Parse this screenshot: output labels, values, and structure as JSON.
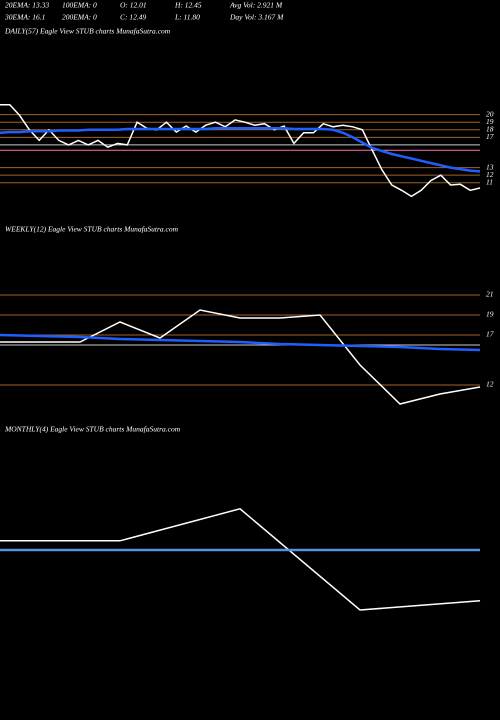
{
  "header": {
    "stats": [
      "20EMA: 13.33",
      "100EMA: 0",
      "O: 12.01",
      "H: 12.45",
      "Avg Vol: 2.921 M",
      "30EMA: 16.1",
      "200EMA: 0",
      "C: 12.49",
      "L: 11.80",
      "Day Vol: 3.167 M"
    ]
  },
  "chart_data": [
    {
      "type": "line",
      "title": "DAILY(57) Eagle  View  STUB charts MunafaSutra.com",
      "categories": [
        null,
        null,
        null,
        null,
        null,
        null,
        null,
        null,
        null,
        null,
        null,
        null,
        null,
        null,
        null,
        null,
        null,
        null,
        null,
        null,
        null,
        null,
        null,
        null,
        null,
        null,
        null,
        null,
        null,
        null,
        null,
        null,
        null,
        null,
        null,
        null,
        null,
        null,
        null,
        null,
        null,
        null,
        null,
        null,
        null,
        null,
        null,
        null,
        null,
        null
      ],
      "series": [
        {
          "color": "#ffffff",
          "values": [
            21.3,
            21.3,
            19.9,
            18.0,
            16.6,
            18.0,
            16.6,
            16.0,
            16.6,
            16.0,
            16.6,
            15.7,
            16.2,
            16.0,
            19.0,
            18.2,
            18.0,
            19.0,
            17.7,
            18.5,
            17.7,
            18.6,
            19.0,
            18.4,
            19.3,
            19.0,
            18.6,
            18.8,
            18.0,
            18.5,
            16.2,
            17.6,
            17.6,
            18.8,
            18.4,
            18.6,
            18.4,
            18.0,
            15.3,
            12.7,
            10.7,
            10.0,
            9.2,
            10.0,
            11.3,
            12.0,
            10.7,
            10.8,
            10.0,
            10.3
          ]
        },
        {
          "color": "#1f5fff",
          "values": [
            17.6,
            17.7,
            17.7,
            17.8,
            17.8,
            17.8,
            17.9,
            17.9,
            17.9,
            18.0,
            18.0,
            18.0,
            18.0,
            18.1,
            18.1,
            18.1,
            18.1,
            18.1,
            18.1,
            18.1,
            18.1,
            18.1,
            18.2,
            18.2,
            18.2,
            18.2,
            18.2,
            18.2,
            18.2,
            18.2,
            18.1,
            18.1,
            18.1,
            18.1,
            18.0,
            17.6,
            17.0,
            16.3,
            15.6,
            15.2,
            14.8,
            14.5,
            14.2,
            13.9,
            13.6,
            13.3,
            13.0,
            12.8,
            12.6,
            12.5
          ]
        }
      ],
      "hlines": [
        {
          "value": 16.0,
          "color": "#cccccc"
        },
        {
          "value": 15.3,
          "color": "#ff6fb0"
        }
      ],
      "ylim": [
        7,
        30
      ],
      "yticks": [
        20,
        19,
        18,
        17,
        13,
        12,
        11
      ],
      "grid": true,
      "grid_color": "#a0622a"
    },
    {
      "type": "line",
      "title": "WEEKLY(12) Eagle  View  STUB charts MunafaSutra.com",
      "categories": [
        null,
        null,
        null,
        null,
        null,
        null,
        null,
        null,
        null,
        null,
        null,
        null,
        null
      ],
      "series": [
        {
          "color": "#ffffff",
          "values": [
            16.3,
            16.3,
            16.3,
            18.3,
            16.7,
            19.5,
            18.7,
            18.7,
            19.0,
            14.0,
            10.1,
            11.1,
            11.8
          ]
        },
        {
          "color": "#1f5fff",
          "values": [
            17.0,
            16.9,
            16.8,
            16.6,
            16.5,
            16.4,
            16.3,
            16.1,
            16.0,
            15.9,
            15.8,
            15.6,
            15.5
          ]
        }
      ],
      "hlines": [
        {
          "value": 16.0,
          "color": "#cccccc"
        }
      ],
      "ylim": [
        9.5,
        26.5
      ],
      "yticks": [
        21,
        19,
        17,
        12
      ],
      "grid": true,
      "grid_color": "#a0622a"
    },
    {
      "type": "line",
      "title": "MONTHLY(4) Eagle  View  STUB charts MunafaSutra.com",
      "categories": [
        null,
        null,
        null,
        null,
        null
      ],
      "series": [
        {
          "color": "#ffffff",
          "values": [
            17.4,
            17.4,
            21.4,
            8.75,
            9.9
          ]
        },
        {
          "color": "#5a8fe8",
          "values": [
            16.25,
            16.25,
            16.25,
            16.25,
            16.25
          ]
        }
      ],
      "ylim": [
        0,
        30
      ],
      "grid": false
    }
  ]
}
